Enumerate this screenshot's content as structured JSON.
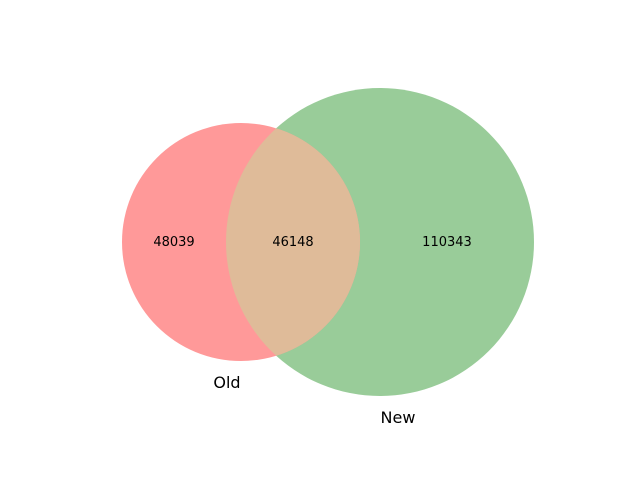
{
  "sets": [
    {
      "label": "Old",
      "color": "#ff9999"
    },
    {
      "label": "New",
      "color": "#99cc99"
    }
  ],
  "overlap_color": "#dfbb99",
  "counts": {
    "old_only": "48039",
    "both": "46148",
    "new_only": "110343"
  }
}
